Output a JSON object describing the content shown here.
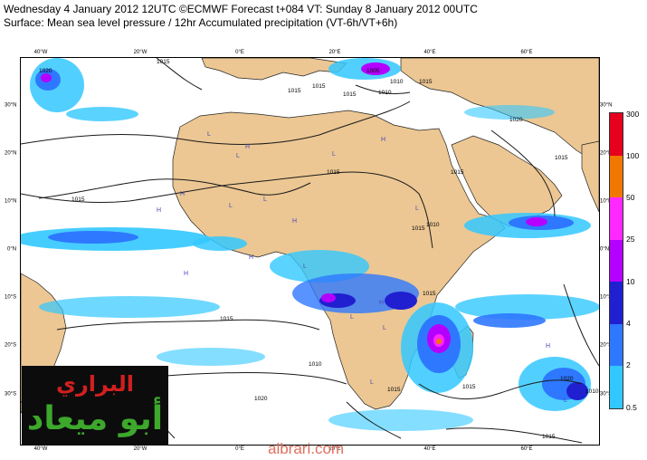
{
  "header": {
    "line1": "Wednesday 4 January 2012 12UTC ©ECMWF Forecast t+084 VT: Sunday 8 January 2012 00UTC",
    "line2": "Surface: Mean sea level pressure / 12hr Accumulated precipitation (VT-6h/VT+6h)"
  },
  "map": {
    "lon_ticks": [
      "40°W",
      "20°W",
      "0°E",
      "20°E",
      "40°E",
      "60°E"
    ],
    "lat_ticks": [
      "30°N",
      "20°N",
      "10°N",
      "0°N",
      "10°S",
      "20°S",
      "30°S"
    ],
    "isobars": [
      "1020",
      "1015",
      "1015",
      "1015",
      "1015",
      "1010",
      "1005",
      "1010",
      "1015",
      "1020",
      "1015",
      "1015",
      "1015",
      "1015",
      "1015",
      "1010",
      "1015",
      "1015",
      "1020",
      "1015",
      "1010",
      "1020",
      "1015",
      "1015",
      "1010"
    ],
    "pressure_marks": [
      "H",
      "H",
      "L",
      "L",
      "L",
      "H",
      "H",
      "L",
      "L",
      "H",
      "H",
      "H",
      "L",
      "H",
      "L",
      "L",
      "H",
      "L",
      "H",
      "L",
      "L"
    ],
    "colors": {
      "land": "#ecc793",
      "ocean": "#ffffff",
      "coast": "#222222",
      "isobar": "#1a1a1a"
    }
  },
  "colorbar": {
    "labels": [
      "300",
      "100",
      "50",
      "25",
      "10",
      "4",
      "2",
      "0.5"
    ],
    "colors": [
      "#e6001e",
      "#f07800",
      "#ff28ff",
      "#b400ff",
      "#2020d0",
      "#2e78ff",
      "#32c8ff"
    ]
  },
  "logo": {
    "line1": "البراري",
    "line2": "أبو ميعاد"
  },
  "watermark": "albrari.com"
}
